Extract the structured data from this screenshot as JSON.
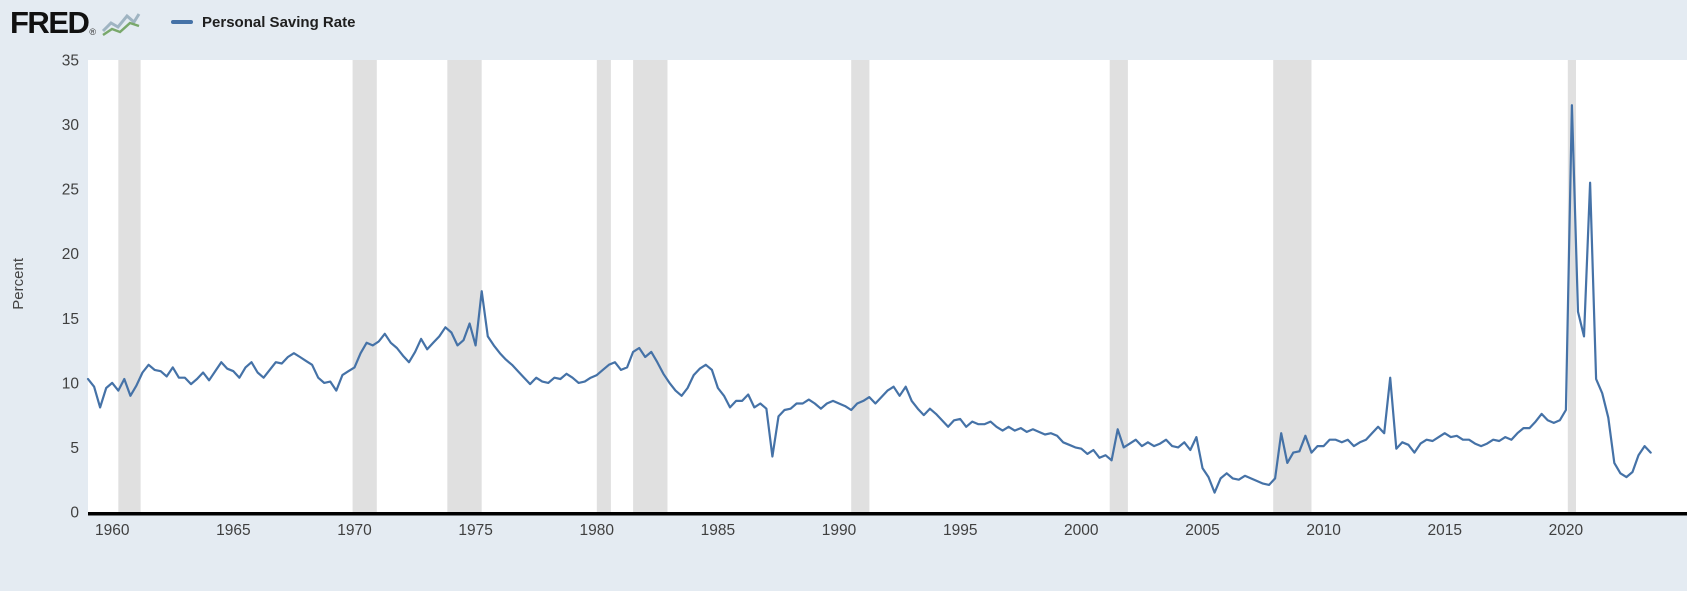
{
  "header": {
    "logo_text": "FRED",
    "registered_mark": "®"
  },
  "legend": {
    "label": "Personal Saving Rate"
  },
  "chart_data": {
    "type": "line",
    "title": "Personal Saving Rate",
    "xlabel": "",
    "ylabel": "Percent",
    "x_range": [
      1959,
      2025
    ],
    "y_range": [
      0,
      35
    ],
    "x_ticks": [
      1960,
      1965,
      1970,
      1975,
      1980,
      1985,
      1990,
      1995,
      2000,
      2005,
      2010,
      2015,
      2020
    ],
    "y_ticks": [
      0,
      5,
      10,
      15,
      20,
      25,
      30,
      35
    ],
    "grid": false,
    "legend_position": "top-left",
    "colors": {
      "line": "#4572a7",
      "recession_band": "#e0e0e0",
      "background": "#e4ebf2",
      "plot_background": "#ffffff",
      "axis": "#000000",
      "tick_text": "#404040"
    },
    "recession_bands": [
      [
        1960.25,
        1961.17
      ],
      [
        1969.92,
        1970.92
      ],
      [
        1973.83,
        1975.25
      ],
      [
        1980.0,
        1980.58
      ],
      [
        1981.5,
        1982.92
      ],
      [
        1990.5,
        1991.25
      ],
      [
        2001.17,
        2001.92
      ],
      [
        2007.92,
        2009.5
      ],
      [
        2020.08,
        2020.42
      ]
    ],
    "series": {
      "name": "Personal Saving Rate",
      "x_start": 1959.0,
      "x_step": 0.25,
      "values": [
        10.3,
        9.7,
        8.1,
        9.6,
        10.0,
        9.4,
        10.3,
        9.0,
        9.8,
        10.8,
        11.4,
        11.0,
        10.9,
        10.5,
        11.2,
        10.4,
        10.4,
        9.9,
        10.3,
        10.8,
        10.2,
        10.9,
        11.6,
        11.1,
        10.9,
        10.4,
        11.2,
        11.6,
        10.8,
        10.4,
        11.0,
        11.6,
        11.5,
        12.0,
        12.3,
        12.0,
        11.7,
        11.4,
        10.4,
        10.0,
        10.1,
        9.4,
        10.6,
        10.9,
        11.2,
        12.3,
        13.1,
        12.9,
        13.2,
        13.8,
        13.1,
        12.7,
        12.1,
        11.6,
        12.4,
        13.4,
        12.6,
        13.1,
        13.6,
        14.3,
        13.9,
        12.9,
        13.3,
        14.6,
        12.9,
        17.1,
        13.6,
        12.9,
        12.3,
        11.8,
        11.4,
        10.9,
        10.4,
        9.9,
        10.4,
        10.1,
        10.0,
        10.4,
        10.3,
        10.7,
        10.4,
        10.0,
        10.1,
        10.4,
        10.6,
        11.0,
        11.4,
        11.6,
        11.0,
        11.2,
        12.4,
        12.7,
        12.0,
        12.4,
        11.6,
        10.7,
        10.0,
        9.4,
        9.0,
        9.6,
        10.6,
        11.1,
        11.4,
        11.0,
        9.6,
        9.0,
        8.1,
        8.6,
        8.6,
        9.1,
        8.1,
        8.4,
        8.0,
        4.3,
        7.4,
        7.9,
        8.0,
        8.4,
        8.4,
        8.7,
        8.4,
        8.0,
        8.4,
        8.6,
        8.4,
        8.2,
        7.9,
        8.4,
        8.6,
        8.9,
        8.4,
        8.9,
        9.4,
        9.7,
        9.0,
        9.7,
        8.6,
        8.0,
        7.5,
        8.0,
        7.6,
        7.1,
        6.6,
        7.1,
        7.2,
        6.6,
        7.0,
        6.8,
        6.8,
        7.0,
        6.6,
        6.3,
        6.6,
        6.3,
        6.5,
        6.2,
        6.4,
        6.2,
        6.0,
        6.1,
        5.9,
        5.4,
        5.2,
        5.0,
        4.9,
        4.5,
        4.8,
        4.2,
        4.4,
        4.0,
        6.4,
        5.0,
        5.3,
        5.6,
        5.1,
        5.4,
        5.1,
        5.3,
        5.6,
        5.1,
        5.0,
        5.4,
        4.8,
        5.8,
        3.4,
        2.7,
        1.5,
        2.6,
        3.0,
        2.6,
        2.5,
        2.8,
        2.6,
        2.4,
        2.2,
        2.1,
        2.6,
        6.1,
        3.8,
        4.6,
        4.7,
        5.9,
        4.6,
        5.1,
        5.1,
        5.6,
        5.6,
        5.4,
        5.6,
        5.1,
        5.4,
        5.6,
        6.1,
        6.6,
        6.1,
        10.4,
        4.9,
        5.4,
        5.2,
        4.6,
        5.3,
        5.6,
        5.5,
        5.8,
        6.1,
        5.8,
        5.9,
        5.6,
        5.6,
        5.3,
        5.1,
        5.3,
        5.6,
        5.5,
        5.8,
        5.6,
        6.1,
        6.5,
        6.5,
        7.0,
        7.6,
        7.1,
        6.9,
        7.1,
        7.9,
        31.5,
        15.5,
        13.6,
        25.5,
        10.3,
        9.2,
        7.3,
        3.8,
        3.0,
        2.7,
        3.1,
        4.4,
        5.1,
        4.6
      ]
    }
  }
}
